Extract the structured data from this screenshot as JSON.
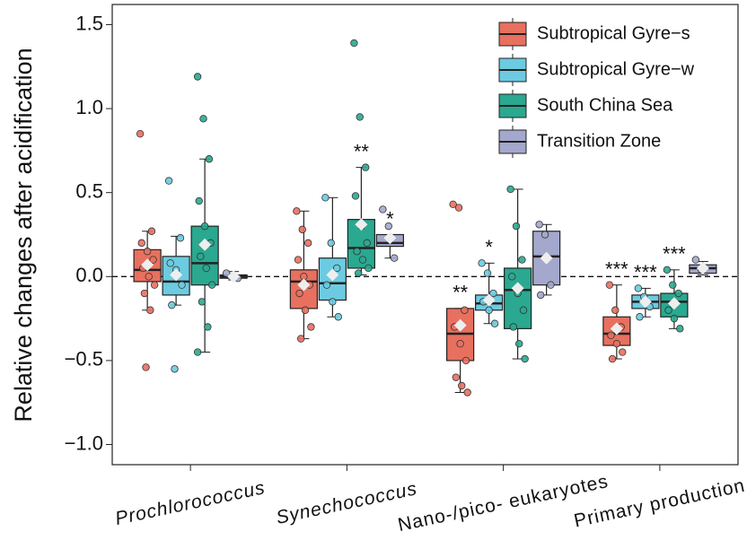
{
  "chart_data": {
    "type": "box",
    "y_label": "Relative changes after acidification",
    "categories": [
      "Prochlorococcus",
      "Synechococcus",
      "Nano-/pico- eukaryotes",
      "Primary production"
    ],
    "category_styles": [
      "italic",
      "italic",
      "normal",
      "normal"
    ],
    "ylim": [
      -1.12,
      1.62
    ],
    "yticks": [
      -1.0,
      -0.5,
      0.0,
      0.5,
      1.0,
      1.5
    ],
    "ytick_labels": [
      "−1.0",
      "−0.5",
      "0.0",
      "0.5",
      "1.0",
      "1.5"
    ],
    "reference_line": 0,
    "legend": "upper right",
    "series": [
      {
        "name": "Subtropical Gyre−s",
        "color": "#e8705f",
        "significance": [
          null,
          null,
          "**",
          "***"
        ],
        "boxes": [
          {
            "low": -0.2,
            "q1": -0.03,
            "median": 0.04,
            "q3": 0.16,
            "high": 0.27,
            "mean": 0.07,
            "points": [
              0.85,
              -0.54,
              0.27,
              0.2,
              0.15,
              0.1,
              0.05,
              0,
              -0.05,
              -0.1,
              -0.2
            ]
          },
          {
            "low": -0.37,
            "q1": -0.19,
            "median": -0.03,
            "q3": 0.04,
            "high": 0.39,
            "mean": -0.05,
            "points": [
              0.39,
              0.28,
              0.2,
              0.1,
              0,
              -0.05,
              -0.1,
              -0.2,
              -0.3,
              -0.37
            ]
          },
          {
            "low": -0.69,
            "q1": -0.5,
            "median": -0.34,
            "q3": -0.19,
            "high": -0.19,
            "mean": -0.29,
            "points": [
              0.43,
              0.41,
              -0.2,
              -0.3,
              -0.4,
              -0.5,
              -0.6,
              -0.65,
              -0.69
            ]
          },
          {
            "low": -0.49,
            "q1": -0.41,
            "median": -0.34,
            "q3": -0.24,
            "high": -0.05,
            "mean": -0.31,
            "points": [
              -0.05,
              -0.2,
              -0.3,
              -0.35,
              -0.4,
              -0.45,
              -0.49
            ]
          }
        ]
      },
      {
        "name": "Subtropical Gyre−w",
        "color": "#6ccbe0",
        "significance": [
          null,
          null,
          "*",
          "***"
        ],
        "boxes": [
          {
            "low": -0.17,
            "q1": -0.11,
            "median": -0.03,
            "q3": 0.12,
            "high": 0.24,
            "mean": 0.01,
            "points": [
              0.57,
              -0.55,
              0.23,
              0.08,
              0.04,
              -0.05,
              -0.17
            ]
          },
          {
            "low": -0.24,
            "q1": -0.14,
            "median": -0.04,
            "q3": 0.11,
            "high": 0.47,
            "mean": 0.01,
            "points": [
              0.47,
              0.2,
              0.05,
              -0.05,
              -0.15,
              -0.24
            ]
          },
          {
            "low": -0.28,
            "q1": -0.2,
            "median": -0.16,
            "q3": -0.11,
            "high": 0.08,
            "mean": -0.14,
            "points": [
              0.08,
              0.02,
              -0.1,
              -0.15,
              -0.2,
              -0.28
            ]
          },
          {
            "low": -0.24,
            "q1": -0.19,
            "median": -0.15,
            "q3": -0.11,
            "high": -0.07,
            "mean": -0.15,
            "points": [
              -0.07,
              -0.12,
              -0.18,
              -0.24
            ]
          }
        ]
      },
      {
        "name": "South China Sea",
        "color": "#2aa890",
        "significance": [
          null,
          "**",
          null,
          "***"
        ],
        "boxes": [
          {
            "low": -0.45,
            "q1": -0.05,
            "median": 0.08,
            "q3": 0.3,
            "high": 0.7,
            "mean": 0.19,
            "points": [
              1.19,
              0.94,
              0.7,
              0.45,
              0.3,
              0.2,
              0.12,
              0.05,
              -0.05,
              -0.15,
              -0.3,
              -0.45
            ]
          },
          {
            "low": 0.01,
            "q1": 0.05,
            "median": 0.17,
            "q3": 0.34,
            "high": 0.65,
            "mean": 0.31,
            "points": [
              1.39,
              0.95,
              0.65,
              0.48,
              0.3,
              0.2,
              0.15,
              0.1,
              0.05,
              0.02
            ]
          },
          {
            "low": -0.49,
            "q1": -0.31,
            "median": -0.08,
            "q3": 0.05,
            "high": 0.52,
            "mean": -0.07,
            "points": [
              0.52,
              0.3,
              0.1,
              0,
              -0.1,
              -0.2,
              -0.3,
              -0.4,
              -0.49
            ]
          },
          {
            "low": -0.31,
            "q1": -0.24,
            "median": -0.15,
            "q3": -0.1,
            "high": 0.04,
            "mean": -0.16,
            "points": [
              0.04,
              -0.05,
              -0.1,
              -0.2,
              -0.25,
              -0.31
            ]
          }
        ]
      },
      {
        "name": "Transition Zone",
        "color": "#a3a8cc",
        "significance": [
          null,
          "*",
          null,
          null
        ],
        "boxes": [
          {
            "low": -0.02,
            "q1": -0.01,
            "median": 0,
            "q3": 0.01,
            "high": 0.03,
            "mean": 0,
            "points": [
              0.02,
              0,
              -0.01
            ]
          },
          {
            "low": 0.11,
            "q1": 0.18,
            "median": 0.2,
            "q3": 0.25,
            "high": 0.25,
            "mean": 0.23,
            "points": [
              0.4,
              0.3,
              0.11
            ]
          },
          {
            "low": -0.11,
            "q1": -0.05,
            "median": 0.12,
            "q3": 0.27,
            "high": 0.31,
            "mean": 0.11,
            "points": [
              0.31,
              0.25,
              -0.05,
              -0.11
            ]
          },
          {
            "low": 0.01,
            "q1": 0.02,
            "median": 0.05,
            "q3": 0.07,
            "high": 0.09,
            "mean": 0.05,
            "points": [
              0.1,
              0.04
            ]
          }
        ]
      }
    ]
  }
}
